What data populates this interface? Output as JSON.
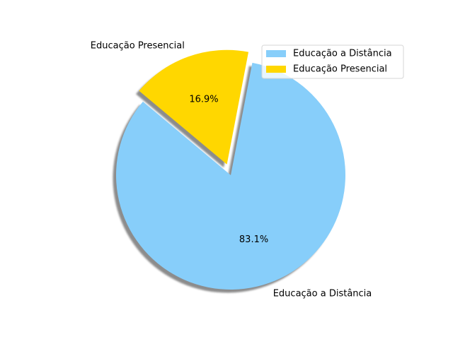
{
  "chart_data": {
    "type": "pie",
    "title": "",
    "startangle_deg": 140,
    "shadow": true,
    "legend_position": "top-right",
    "slices": [
      {
        "label": "Educação a Distância",
        "percent": 83.1,
        "percent_label": "83.1%",
        "color": "#87CEFA",
        "explode": 0
      },
      {
        "label": "Educação Presencial",
        "percent": 16.9,
        "percent_label": "16.9%",
        "color": "#FFD700",
        "explode": 0.1
      }
    ],
    "legend": [
      {
        "label": "Educação a Distância",
        "color": "#87CEFA"
      },
      {
        "label": "Educação Presencial",
        "color": "#FFD700"
      }
    ]
  }
}
